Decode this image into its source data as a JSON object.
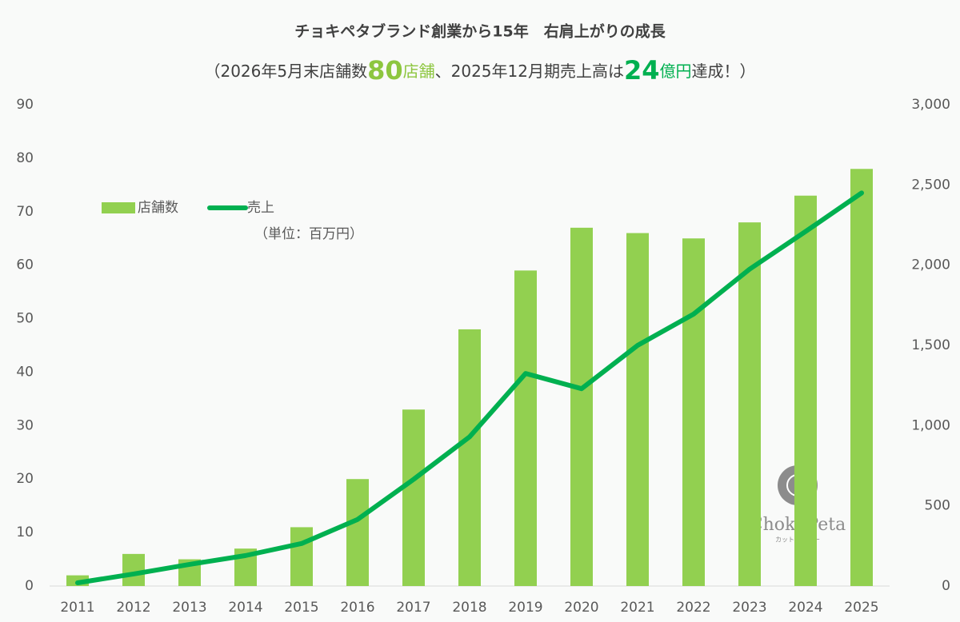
{
  "chart_data": {
    "type": "bar",
    "title": "チョキペタブランド創業から15年　右肩上がりの成長",
    "subtitle": [
      {
        "text": "（2026年5月末店舗数"
      },
      {
        "text": "80",
        "color": "#8dc63f",
        "emphasis": true
      },
      {
        "text": "店舗",
        "color": "#8dc63f"
      },
      {
        "text": "、2025年12月期売上高は"
      },
      {
        "text": "24",
        "color": "#00b050",
        "emphasis": true
      },
      {
        "text": "億円",
        "color": "#00b050"
      },
      {
        "text": "達成！）"
      }
    ],
    "note": "（単位：百万円）",
    "logo": {
      "name": "Choki Peta",
      "tagline": "カット＆カラー"
    },
    "categories": [
      "2011",
      "2012",
      "2013",
      "2014",
      "2015",
      "2016",
      "2017",
      "2018",
      "2019",
      "2020",
      "2021",
      "2022",
      "2023",
      "2024",
      "2025"
    ],
    "series": [
      {
        "name": "店舗数",
        "type": "bar",
        "color": "#92d050",
        "values": [
          2,
          6,
          5,
          7,
          11,
          20,
          33,
          48,
          59,
          67,
          66,
          65,
          68,
          73,
          78
        ]
      },
      {
        "name": "売上",
        "type": "line",
        "axis": "y2",
        "color": "#00b050",
        "values": [
          20,
          75,
          135,
          190,
          265,
          415,
          665,
          930,
          1325,
          1230,
          1500,
          1695,
          1975,
          2210,
          2450
        ]
      }
    ],
    "ylim": [
      0,
      90
    ],
    "yticks": [
      0,
      10,
      20,
      30,
      40,
      50,
      60,
      70,
      80,
      90
    ],
    "y2lim": [
      0,
      3000
    ],
    "y2ticks": [
      0,
      500,
      {
        "value": 1000,
        "label": "1,000"
      },
      {
        "value": 1500,
        "label": "1,500"
      },
      {
        "value": 2000,
        "label": "2,000"
      },
      {
        "value": 2500,
        "label": "2,500"
      },
      {
        "value": 3000,
        "label": "3,000"
      }
    ],
    "grid": false
  }
}
